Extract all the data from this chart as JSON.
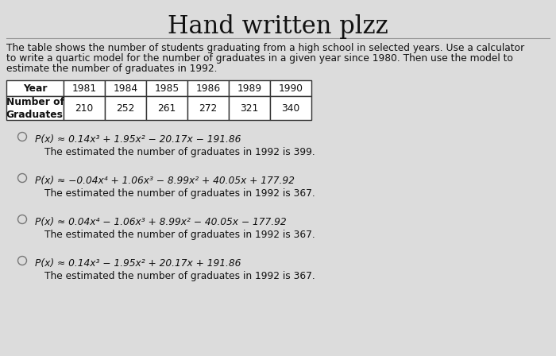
{
  "title": "Hand written plzz",
  "description_lines": [
    "The table shows the number of students graduating from a high school in selected years. Use a calculator",
    "to write a quartic model for the number of graduates in a given year since 1980. Then use the model to",
    "estimate the number of graduates in 1992."
  ],
  "table_headers": [
    "Year",
    "1981",
    "1984",
    "1985",
    "1986",
    "1989",
    "1990"
  ],
  "table_row_label": "Number of\nGraduates",
  "table_values": [
    "210",
    "252",
    "261",
    "272",
    "321",
    "340"
  ],
  "options": [
    {
      "formula": "P(x) ≈ 0.14x³ + 1.95x² − 20.17x − 191.86",
      "answer": "The estimated the number of graduates in 1992 is 399."
    },
    {
      "formula": "P(x) ≈ −0.04x⁴ + 1.06x³ − 8.99x² + 40.05x + 177.92",
      "answer": "The estimated the number of graduates in 1992 is 367."
    },
    {
      "formula": "P(x) ≈ 0.04x⁴ − 1.06x³ + 8.99x² − 40.05x − 177.92",
      "answer": "The estimated the number of graduates in 1992 is 367."
    },
    {
      "formula": "P(x) ≈ 0.14x³ − 1.95x² + 20.17x + 191.86",
      "answer": "The estimated the number of graduates in 1992 is 367."
    }
  ],
  "bg_color": "#dcdcdc",
  "text_color": "#111111",
  "title_fontsize": 22,
  "body_fontsize": 8.8,
  "table_fontsize": 8.8,
  "table_label_fontsize": 8.8
}
